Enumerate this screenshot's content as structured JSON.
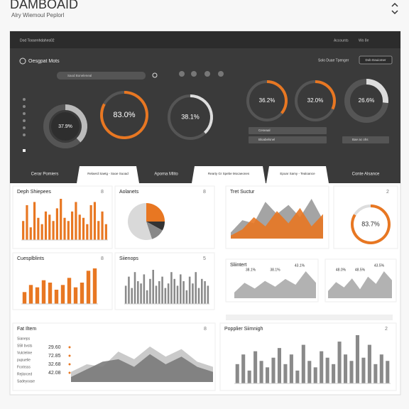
{
  "header": {
    "title": "DAMBOAID",
    "subtitle": "Alry Wiemoul Peplorl"
  },
  "topbar": {
    "title": "Dod Toosenhdahes02",
    "links": [
      "Accounts",
      "Wo 8e"
    ]
  },
  "toolbar": {
    "label": "Oesgpat Mots",
    "search": "Saod Boneleneal",
    "right_label": "Solo Duae Tpenger",
    "button": "Dob Dauiomer"
  },
  "gauges": [
    {
      "value": 37.9,
      "label": "37.9%",
      "color": "#bbbbbb"
    },
    {
      "value": 83.0,
      "label": "83.0%",
      "color": "#e87722"
    },
    {
      "value": 38.1,
      "label": "38.1%",
      "color": "#dddddd"
    },
    {
      "value": 36.2,
      "label": "36.2%",
      "color": "#e87722"
    },
    {
      "value": 32.0,
      "label": "32.0%",
      "color": "#e87722"
    },
    {
      "value": 26.6,
      "label": "26.6%",
      "color": "#dddddd"
    }
  ],
  "controls": [
    "Ceseaal",
    "Bloabelsnel",
    "Bae ac ohs"
  ],
  "tabs": [
    {
      "label": "Cerar Pomiers",
      "active": false
    },
    {
      "label": "Relaerd Saetg - Saoe Suoad",
      "active": true
    },
    {
      "label": "Apoma Mlito",
      "active": false
    },
    {
      "label": "Rearty Gr Spebe Mocaeones",
      "active": true
    },
    {
      "label": "Epoar Samy - Tealoance",
      "active": true
    },
    {
      "label": "Conte Alsance",
      "active": false
    }
  ],
  "cards": [
    {
      "title": "Deph Shiepees",
      "badge": "8",
      "chart": {
        "type": "bar",
        "color": "#e87722",
        "values": [
          30,
          55,
          20,
          60,
          35,
          25,
          45,
          40,
          30,
          50,
          65,
          35,
          30,
          45,
          60,
          40,
          35,
          25,
          55,
          60,
          30,
          45,
          25
        ]
      }
    },
    {
      "title": "Aolanets",
      "badge": "8",
      "chart": {
        "type": "pie",
        "slices": [
          {
            "value": 25,
            "color": "#e87722"
          },
          {
            "value": 8,
            "color": "#333333"
          },
          {
            "value": 12,
            "color": "#888888"
          },
          {
            "value": 55,
            "color": "#d9d9d9"
          }
        ]
      }
    },
    {
      "title": "Tret Suctur",
      "chart": {
        "type": "area",
        "series": [
          {
            "color": "#9a9a9a",
            "values": [
              10,
              30,
              25,
              60,
              40,
              55,
              35,
              65,
              30
            ]
          },
          {
            "color": "#e87722",
            "values": [
              5,
              15,
              35,
              20,
              45,
              25,
              50,
              20,
              40
            ]
          }
        ]
      }
    },
    {
      "badge": "2",
      "chart": {
        "type": "gauge",
        "value": 83.7,
        "label": "83.7%",
        "color": "#e87722"
      }
    },
    {
      "title": "Cuesplblints",
      "badge": "8",
      "chart": {
        "type": "bar",
        "color": "#e87722",
        "values": [
          25,
          40,
          35,
          50,
          45,
          30,
          40,
          55,
          35,
          45,
          70,
          75
        ]
      }
    },
    {
      "title": "Siienops",
      "badge": "5",
      "chart": {
        "type": "bar",
        "color": "#8a8a8a",
        "values": [
          40,
          60,
          35,
          70,
          50,
          45,
          65,
          30,
          55,
          75,
          40,
          50,
          60,
          35,
          45,
          70,
          55,
          40,
          65,
          50,
          30,
          60,
          45,
          70,
          35,
          55,
          50,
          40
        ]
      }
    },
    {
      "title": "Sliintert",
      "chart": {
        "type": "area",
        "series": [
          {
            "color": "#aaaaaa",
            "values": [
              15,
              40,
              25,
              45,
              30,
              50,
              35,
              70,
              40
            ]
          }
        ],
        "labels": [
          "38.1%",
          "38.1%",
          "43.1%"
        ]
      }
    },
    {
      "chart": {
        "type": "area",
        "series": [
          {
            "color": "#aaaaaa",
            "values": [
              20,
              45,
              30,
              55,
              25,
              60,
              40,
              75,
              50
            ]
          }
        ],
        "labels": [
          "48.0%",
          "48.5%",
          "43.5%"
        ]
      }
    },
    {
      "title": "Fat Iltem",
      "badge": "8",
      "items": [
        "Sianeps",
        "S5ll bvsts",
        "Vulcleline",
        "pupuelie",
        "Fcotrsss",
        "Rejlorced",
        "Sadeyoase"
      ],
      "figures": [
        "29.60",
        "72.85",
        "32.68",
        "42.08"
      ],
      "chart": {
        "type": "area",
        "series": [
          {
            "color": "#c4c4c4",
            "values": [
              20,
              35,
              30,
              60,
              45,
              70,
              50,
              65,
              40,
              30
            ]
          },
          {
            "color": "#7a7a7a",
            "values": [
              10,
              25,
              40,
              45,
              30,
              55,
              35,
              50,
              30,
              20
            ]
          }
        ]
      }
    },
    {
      "title": "Popplier Siimnigh",
      "badge": "2",
      "chart": {
        "type": "bar",
        "color": "#8a8a8a",
        "values": [
          30,
          45,
          20,
          50,
          35,
          25,
          40,
          55,
          30,
          45,
          20,
          60,
          35,
          25,
          50,
          40,
          30,
          65,
          45,
          35,
          75,
          40,
          60,
          30,
          45,
          35
        ]
      }
    }
  ]
}
